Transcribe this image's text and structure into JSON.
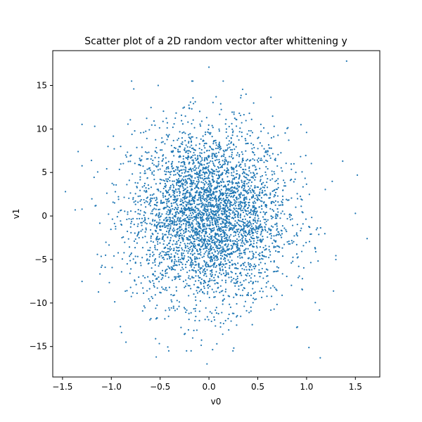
{
  "chart_data": {
    "type": "scatter",
    "title": "Scatter plot of a 2D random vector after whittening y",
    "xlabel": "v0",
    "ylabel": "v1",
    "xlim": [
      -1.6,
      1.75
    ],
    "ylim": [
      -18.5,
      19.0
    ],
    "xticks": [
      -1.5,
      -1.0,
      -0.5,
      0.0,
      0.5,
      1.0,
      1.5
    ],
    "xtick_labels": [
      "−1.5",
      "−1.0",
      "−0.5",
      "0.0",
      "0.5",
      "1.0",
      "1.5"
    ],
    "yticks": [
      -15,
      -10,
      -5,
      0,
      5,
      10,
      15
    ],
    "ytick_labels": [
      "−15",
      "−10",
      "−5",
      "0",
      "5",
      "10",
      "15"
    ],
    "grid": false,
    "marker_color": "#1f77b4",
    "distribution": {
      "count": 4000,
      "x_mean": 0.0,
      "x_std": 0.4,
      "y_mean": 0.0,
      "y_std": 5.0
    },
    "outliers": [
      {
        "x": 1.41,
        "y": 17.8
      },
      {
        "x": 0.0,
        "y": 17.1
      },
      {
        "x": -0.02,
        "y": -17.0
      },
      {
        "x": -0.54,
        "y": -16.2
      },
      {
        "x": 1.14,
        "y": -16.3
      },
      {
        "x": 1.62,
        "y": -2.6
      },
      {
        "x": -1.47,
        "y": 2.8
      },
      {
        "x": -1.34,
        "y": 7.4
      },
      {
        "x": -0.77,
        "y": 14.6
      },
      {
        "x": -0.52,
        "y": 15.0
      },
      {
        "x": -0.85,
        "y": -14.5
      },
      {
        "x": 0.38,
        "y": 14.0
      },
      {
        "x": 1.52,
        "y": 4.7
      },
      {
        "x": 1.5,
        "y": 0.3
      },
      {
        "x": -1.37,
        "y": 0.7
      },
      {
        "x": -1.17,
        "y": 10.3
      },
      {
        "x": 1.0,
        "y": 9.6
      },
      {
        "x": 1.37,
        "y": 6.3
      }
    ]
  }
}
